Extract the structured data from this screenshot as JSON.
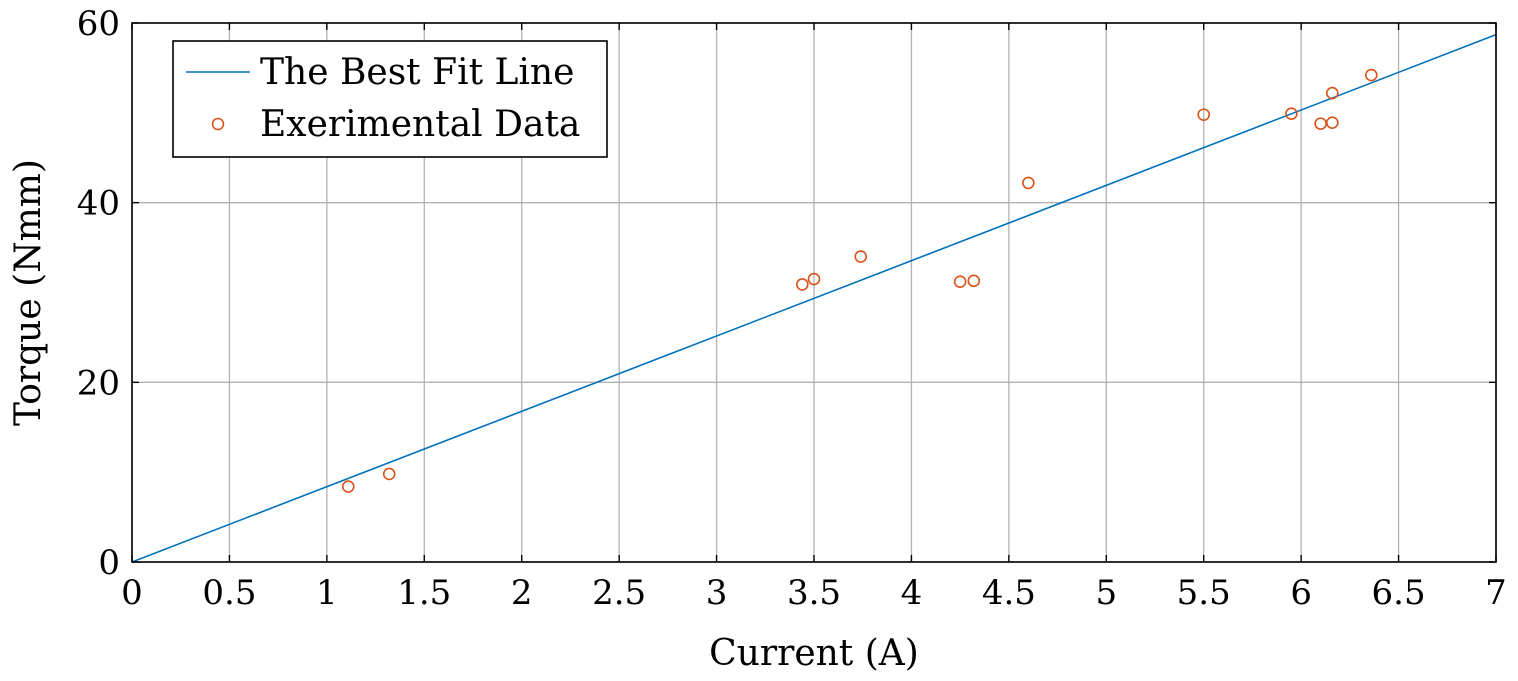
{
  "chart_data": {
    "type": "scatter",
    "xlabel": "Current (A)",
    "ylabel": "Torque (Nmm)",
    "xlim": [
      0,
      7
    ],
    "ylim": [
      0,
      60
    ],
    "x_ticks": [
      "0",
      "0.5",
      "1",
      "1.5",
      "2",
      "2.5",
      "3",
      "3.5",
      "4",
      "4.5",
      "5",
      "5.5",
      "6",
      "6.5",
      "7"
    ],
    "y_ticks": [
      "0",
      "20",
      "40",
      "60"
    ],
    "grid": true,
    "legend_position": "top-left",
    "series": [
      {
        "name": "The Best Fit Line",
        "kind": "line",
        "color": "#0072bd",
        "x": [
          0,
          7
        ],
        "y": [
          0,
          58.7
        ]
      },
      {
        "name": "Exerimental Data",
        "kind": "scatter",
        "marker": "circle-open",
        "color": "#d95319",
        "x": [
          1.11,
          1.32,
          3.44,
          3.5,
          3.74,
          4.25,
          4.32,
          4.6,
          5.5,
          5.95,
          6.1,
          6.16,
          6.16,
          6.36
        ],
        "y": [
          8.4,
          9.8,
          30.9,
          31.5,
          34.0,
          31.2,
          31.3,
          42.2,
          49.8,
          49.9,
          48.8,
          48.9,
          52.2,
          54.2
        ]
      }
    ]
  }
}
